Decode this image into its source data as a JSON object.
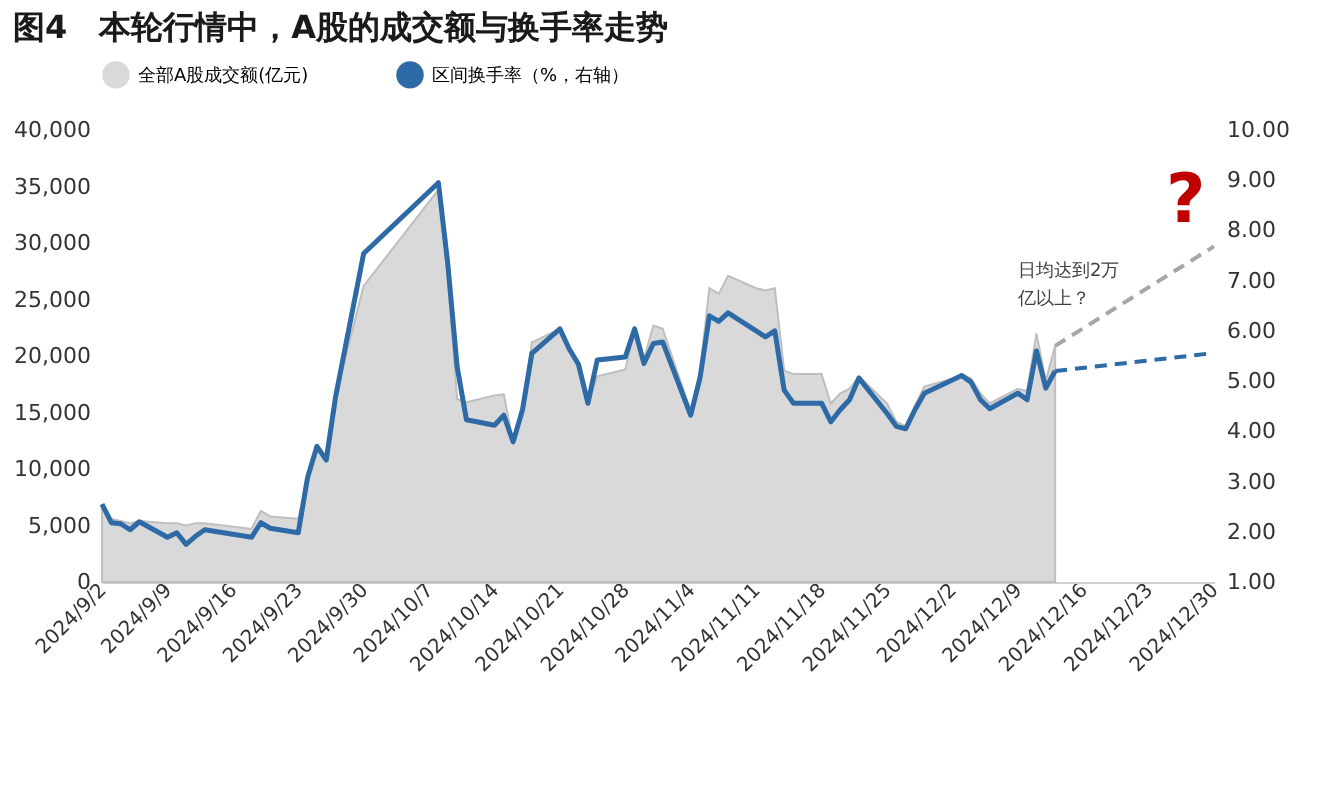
{
  "chart_data": {
    "type": "area",
    "title": "图4　本轮行情中，A股的成交额与换手率走势",
    "legend": "top",
    "grid": false,
    "xlim": [
      "2024-09-02",
      "2024-12-30"
    ],
    "xticks": [
      {
        "value": "2024-09-02",
        "label": "2024/9/2"
      },
      {
        "value": "2024-09-09",
        "label": "2024/9/9"
      },
      {
        "value": "2024-09-16",
        "label": "2024/9/16"
      },
      {
        "value": "2024-09-23",
        "label": "2024/9/23"
      },
      {
        "value": "2024-09-30",
        "label": "2024/9/30"
      },
      {
        "value": "2024-10-07",
        "label": "2024/10/7"
      },
      {
        "value": "2024-10-14",
        "label": "2024/10/14"
      },
      {
        "value": "2024-10-21",
        "label": "2024/10/21"
      },
      {
        "value": "2024-10-28",
        "label": "2024/10/28"
      },
      {
        "value": "2024-11-04",
        "label": "2024/11/4"
      },
      {
        "value": "2024-11-11",
        "label": "2024/11/11"
      },
      {
        "value": "2024-11-18",
        "label": "2024/11/18"
      },
      {
        "value": "2024-11-25",
        "label": "2024/11/25"
      },
      {
        "value": "2024-12-02",
        "label": "2024/12/2"
      },
      {
        "value": "2024-12-09",
        "label": "2024/12/9"
      },
      {
        "value": "2024-12-16",
        "label": "2024/12/16"
      },
      {
        "value": "2024-12-23",
        "label": "2024/12/23"
      },
      {
        "value": "2024-12-30",
        "label": "2024/12/30"
      }
    ],
    "ylim": [
      0,
      40000
    ],
    "yticks": [
      0,
      {
        "value": 5000,
        "label": "5,000"
      },
      {
        "value": 10000,
        "label": "10,000"
      },
      {
        "value": 15000,
        "label": "15,000"
      },
      {
        "value": 20000,
        "label": "20,000"
      },
      {
        "value": 25000,
        "label": "25,000"
      },
      {
        "value": 30000,
        "label": "30,000"
      },
      {
        "value": 35000,
        "label": "35,000"
      },
      {
        "value": 40000,
        "label": "40,000"
      }
    ],
    "y2lim": [
      1,
      10
    ],
    "y2ticks": [
      {
        "value": 1,
        "label": "1.00"
      },
      {
        "value": 2,
        "label": "2.00"
      },
      {
        "value": 3,
        "label": "3.00"
      },
      {
        "value": 4,
        "label": "4.00"
      },
      {
        "value": 5,
        "label": "5.00"
      },
      {
        "value": 6,
        "label": "6.00"
      },
      {
        "value": 7,
        "label": "7.00"
      },
      {
        "value": 8,
        "label": "8.00"
      },
      {
        "value": 9,
        "label": "9.00"
      },
      {
        "value": 10,
        "label": "10.00"
      }
    ],
    "x": [
      "2024-09-02",
      "2024-09-03",
      "2024-09-04",
      "2024-09-05",
      "2024-09-06",
      "2024-09-09",
      "2024-09-10",
      "2024-09-11",
      "2024-09-12",
      "2024-09-13",
      "2024-09-18",
      "2024-09-19",
      "2024-09-20",
      "2024-09-23",
      "2024-09-24",
      "2024-09-25",
      "2024-09-26",
      "2024-09-27",
      "2024-09-30",
      "2024-10-08",
      "2024-10-09",
      "2024-10-10",
      "2024-10-11",
      "2024-10-14",
      "2024-10-15",
      "2024-10-16",
      "2024-10-17",
      "2024-10-18",
      "2024-10-21",
      "2024-10-22",
      "2024-10-23",
      "2024-10-24",
      "2024-10-25",
      "2024-10-28",
      "2024-10-29",
      "2024-10-30",
      "2024-10-31",
      "2024-11-01",
      "2024-11-04",
      "2024-11-05",
      "2024-11-06",
      "2024-11-07",
      "2024-11-08",
      "2024-11-11",
      "2024-11-12",
      "2024-11-13",
      "2024-11-14",
      "2024-11-15",
      "2024-11-18",
      "2024-11-19",
      "2024-11-20",
      "2024-11-21",
      "2024-11-22",
      "2024-11-25",
      "2024-11-26",
      "2024-11-27",
      "2024-11-28",
      "2024-11-29",
      "2024-12-02",
      "2024-12-03",
      "2024-12-04",
      "2024-12-05",
      "2024-12-06",
      "2024-12-09",
      "2024-12-10",
      "2024-12-11",
      "2024-12-12",
      "2024-12-13"
    ],
    "series": [
      {
        "name": "全部A股成交额(亿元)",
        "color": "#d9d9d9",
        "values": [
          6700,
          5600,
          5400,
          5200,
          5400,
          5200,
          5200,
          5000,
          5200,
          5200,
          4700,
          6300,
          5800,
          5600,
          9100,
          12000,
          10900,
          16500,
          26200,
          34700,
          27100,
          16200,
          15900,
          16500,
          16600,
          12400,
          15300,
          21200,
          22400,
          20600,
          19300,
          15900,
          18200,
          18800,
          22400,
          19700,
          22700,
          22400,
          15100,
          18700,
          26000,
          25500,
          27100,
          26000,
          25800,
          26000,
          18700,
          18400,
          18400,
          15800,
          16700,
          17100,
          18200,
          15800,
          14200,
          13800,
          15600,
          17300,
          18000,
          18400,
          18000,
          16700,
          15800,
          17100,
          16900,
          22000,
          17800,
          20900
        ]
      },
      {
        "name": "区间换手率（%，右轴）",
        "type": "line",
        "line_style": "solid",
        "axis": "y2",
        "color": "#2e6aa6",
        "values": [
          2.55,
          2.18,
          2.16,
          2.04,
          2.2,
          1.89,
          1.98,
          1.75,
          1.91,
          2.04,
          1.89,
          2.18,
          2.07,
          1.98,
          3.08,
          3.7,
          3.43,
          4.69,
          7.54,
          8.95,
          7.34,
          5.29,
          4.23,
          4.12,
          4.32,
          3.79,
          4.43,
          5.55,
          6.04,
          5.64,
          5.33,
          4.56,
          5.42,
          5.48,
          6.04,
          5.35,
          5.75,
          5.78,
          4.32,
          5.07,
          6.3,
          6.19,
          6.36,
          6.0,
          5.88,
          6.0,
          4.82,
          4.56,
          4.56,
          4.19,
          4.43,
          4.63,
          5.06,
          4.36,
          4.1,
          4.05,
          4.43,
          4.76,
          5.02,
          5.11,
          4.98,
          4.63,
          4.45,
          4.76,
          4.63,
          5.6,
          4.86,
          5.2
        ]
      },
      {
        "type": "line",
        "color": "#a6a6a6",
        "line_style": "dashed",
        "x": [
          "2024-12-13",
          "2024-12-30"
        ],
        "values": [
          20900,
          29700
        ]
      },
      {
        "type": "line",
        "axis": "y2",
        "color": "#2e6aa6",
        "line_style": "dashed",
        "x": [
          "2024-12-13",
          "2024-12-30"
        ],
        "values": [
          5.2,
          5.56
        ]
      }
    ],
    "annotations": [
      "日均达到2万",
      "亿以上？",
      "?"
    ]
  }
}
